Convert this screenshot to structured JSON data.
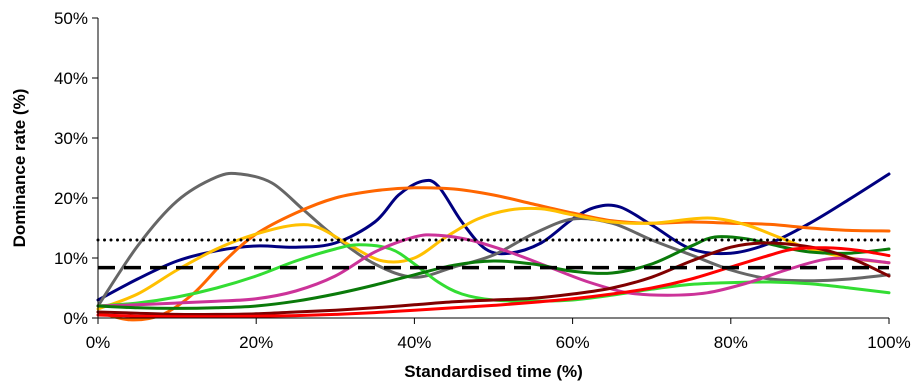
{
  "chart_data": {
    "type": "line",
    "title": "",
    "xlabel": "Standardised time (%)",
    "ylabel": "Dominance rate (%)",
    "xlim": [
      0,
      100
    ],
    "ylim": [
      0,
      50
    ],
    "x_ticks": [
      "0%",
      "20%",
      "40%",
      "60%",
      "80%",
      "100%"
    ],
    "y_ticks": [
      "0%",
      "10%",
      "20%",
      "30%",
      "40%",
      "50%"
    ],
    "grid": false,
    "legend": "none",
    "series": [
      {
        "color": "#000080",
        "style": "solid",
        "points": [
          [
            0,
            3
          ],
          [
            5,
            6.5
          ],
          [
            10,
            9.5
          ],
          [
            15,
            11.2
          ],
          [
            20,
            12
          ],
          [
            25,
            11.8
          ],
          [
            30,
            12.5
          ],
          [
            35,
            16
          ],
          [
            38,
            20.5
          ],
          [
            41,
            22.8
          ],
          [
            43,
            22
          ],
          [
            46,
            16
          ],
          [
            49,
            11.5
          ],
          [
            52,
            10.8
          ],
          [
            56,
            12.5
          ],
          [
            60,
            16.5
          ],
          [
            63,
            18.5
          ],
          [
            66,
            18.5
          ],
          [
            70,
            15.5
          ],
          [
            75,
            11.5
          ],
          [
            80,
            10.8
          ],
          [
            85,
            12.5
          ],
          [
            90,
            15.8
          ],
          [
            95,
            19.8
          ],
          [
            100,
            24
          ]
        ]
      },
      {
        "color": "#666666",
        "style": "solid",
        "points": [
          [
            0,
            2
          ],
          [
            5,
            12
          ],
          [
            10,
            19.5
          ],
          [
            15,
            23.5
          ],
          [
            18,
            24
          ],
          [
            22,
            22.5
          ],
          [
            26,
            18
          ],
          [
            30,
            13.5
          ],
          [
            35,
            9
          ],
          [
            40,
            6.8
          ],
          [
            45,
            8.5
          ],
          [
            50,
            10.5
          ],
          [
            55,
            14
          ],
          [
            60,
            16.5
          ],
          [
            65,
            15.8
          ],
          [
            70,
            13
          ],
          [
            75,
            10.5
          ],
          [
            80,
            8
          ],
          [
            85,
            6.5
          ],
          [
            90,
            6.2
          ],
          [
            95,
            6.5
          ],
          [
            100,
            7.2
          ]
        ]
      },
      {
        "color": "#FF6600",
        "style": "solid",
        "points": [
          [
            0,
            1
          ],
          [
            4,
            -0.3
          ],
          [
            8,
            0.5
          ],
          [
            12,
            4
          ],
          [
            16,
            9.5
          ],
          [
            20,
            14
          ],
          [
            25,
            17.5
          ],
          [
            30,
            20
          ],
          [
            35,
            21.2
          ],
          [
            40,
            21.7
          ],
          [
            45,
            21.5
          ],
          [
            50,
            20.5
          ],
          [
            55,
            19
          ],
          [
            60,
            17.5
          ],
          [
            65,
            16.2
          ],
          [
            70,
            15.8
          ],
          [
            75,
            16
          ],
          [
            80,
            15.8
          ],
          [
            85,
            15.6
          ],
          [
            90,
            15
          ],
          [
            95,
            14.6
          ],
          [
            100,
            14.5
          ]
        ]
      },
      {
        "color": "#FFC000",
        "style": "solid",
        "points": [
          [
            0,
            1.5
          ],
          [
            5,
            4
          ],
          [
            10,
            8
          ],
          [
            15,
            11.5
          ],
          [
            20,
            14
          ],
          [
            25,
            15.5
          ],
          [
            28,
            15
          ],
          [
            32,
            12
          ],
          [
            36,
            9.5
          ],
          [
            40,
            10
          ],
          [
            44,
            13.5
          ],
          [
            48,
            16.5
          ],
          [
            52,
            18
          ],
          [
            56,
            18.2
          ],
          [
            60,
            17.2
          ],
          [
            65,
            16
          ],
          [
            70,
            15.8
          ],
          [
            75,
            16.5
          ],
          [
            78,
            16.6
          ],
          [
            82,
            15.5
          ],
          [
            86,
            13.5
          ],
          [
            90,
            11.5
          ],
          [
            95,
            10
          ],
          [
            100,
            9.2
          ]
        ]
      },
      {
        "color": "#33DD33",
        "style": "solid",
        "points": [
          [
            0,
            2
          ],
          [
            5,
            2.5
          ],
          [
            10,
            3.5
          ],
          [
            15,
            5
          ],
          [
            20,
            7
          ],
          [
            25,
            9.5
          ],
          [
            30,
            11.5
          ],
          [
            33,
            12.2
          ],
          [
            37,
            11.5
          ],
          [
            40,
            9
          ],
          [
            43,
            6
          ],
          [
            46,
            4
          ],
          [
            50,
            3
          ],
          [
            55,
            2.8
          ],
          [
            60,
            3
          ],
          [
            65,
            3.8
          ],
          [
            70,
            4.8
          ],
          [
            75,
            5.6
          ],
          [
            80,
            5.9
          ],
          [
            85,
            6
          ],
          [
            90,
            5.7
          ],
          [
            95,
            5
          ],
          [
            100,
            4.2
          ]
        ]
      },
      {
        "color": "#CC3399",
        "style": "solid",
        "points": [
          [
            0,
            2
          ],
          [
            5,
            2.2
          ],
          [
            10,
            2.5
          ],
          [
            15,
            2.8
          ],
          [
            20,
            3.2
          ],
          [
            25,
            4.5
          ],
          [
            30,
            7
          ],
          [
            35,
            11
          ],
          [
            40,
            13.5
          ],
          [
            43,
            13.8
          ],
          [
            47,
            13
          ],
          [
            52,
            11
          ],
          [
            57,
            8.5
          ],
          [
            62,
            6
          ],
          [
            67,
            4.2
          ],
          [
            72,
            3.8
          ],
          [
            77,
            4.2
          ],
          [
            82,
            5.8
          ],
          [
            87,
            8
          ],
          [
            92,
            9.8
          ],
          [
            96,
            9.8
          ],
          [
            100,
            9.2
          ]
        ]
      },
      {
        "color": "#0A7A0A",
        "style": "solid",
        "points": [
          [
            0,
            2
          ],
          [
            5,
            1.7
          ],
          [
            10,
            1.6
          ],
          [
            15,
            1.7
          ],
          [
            20,
            2
          ],
          [
            25,
            2.8
          ],
          [
            30,
            4
          ],
          [
            35,
            5.5
          ],
          [
            40,
            7.2
          ],
          [
            45,
            8.8
          ],
          [
            50,
            9.5
          ],
          [
            55,
            9
          ],
          [
            60,
            7.8
          ],
          [
            65,
            7.5
          ],
          [
            70,
            9
          ],
          [
            75,
            12
          ],
          [
            78,
            13.5
          ],
          [
            82,
            13.2
          ],
          [
            86,
            12
          ],
          [
            90,
            11
          ],
          [
            95,
            10.8
          ],
          [
            100,
            11.5
          ]
        ]
      },
      {
        "color": "#800000",
        "style": "solid",
        "points": [
          [
            0,
            1
          ],
          [
            5,
            0.8
          ],
          [
            10,
            0.6
          ],
          [
            15,
            0.6
          ],
          [
            20,
            0.7
          ],
          [
            25,
            1
          ],
          [
            30,
            1.3
          ],
          [
            35,
            1.7
          ],
          [
            40,
            2.2
          ],
          [
            45,
            2.7
          ],
          [
            50,
            3
          ],
          [
            55,
            3.3
          ],
          [
            60,
            4
          ],
          [
            65,
            5
          ],
          [
            70,
            6.8
          ],
          [
            75,
            9.5
          ],
          [
            80,
            11.8
          ],
          [
            84,
            12.5
          ],
          [
            88,
            12.2
          ],
          [
            92,
            11.3
          ],
          [
            96,
            9.5
          ],
          [
            100,
            7
          ]
        ]
      },
      {
        "color": "#FF0000",
        "style": "solid",
        "points": [
          [
            0,
            0.5
          ],
          [
            5,
            0.3
          ],
          [
            10,
            0.2
          ],
          [
            15,
            0.2
          ],
          [
            20,
            0.3
          ],
          [
            25,
            0.4
          ],
          [
            30,
            0.6
          ],
          [
            35,
            0.9
          ],
          [
            40,
            1.3
          ],
          [
            45,
            1.7
          ],
          [
            50,
            2.1
          ],
          [
            55,
            2.6
          ],
          [
            60,
            3.2
          ],
          [
            65,
            4
          ],
          [
            70,
            5
          ],
          [
            75,
            6.5
          ],
          [
            80,
            8.5
          ],
          [
            85,
            10.5
          ],
          [
            88,
            11.5
          ],
          [
            92,
            11.7
          ],
          [
            96,
            11.3
          ],
          [
            100,
            10.4
          ]
        ]
      },
      {
        "color": "#000000",
        "style": "dotted",
        "points": [
          [
            0,
            13
          ],
          [
            100,
            13
          ]
        ]
      },
      {
        "color": "#000000",
        "style": "dashed",
        "points": [
          [
            0,
            8.4
          ],
          [
            100,
            8.4
          ]
        ]
      }
    ]
  }
}
